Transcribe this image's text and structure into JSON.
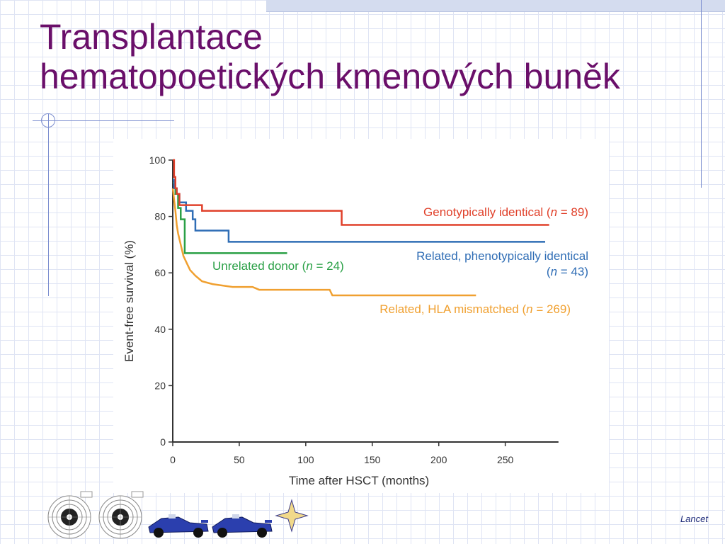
{
  "slide": {
    "title_line1": "Transplantace",
    "title_line2": "hematopoetických kmenových buněk",
    "credit": "Lancet"
  },
  "colors": {
    "title": "#6a0f6a",
    "genotypical": "#e0402a",
    "phenotypical": "#2f6db5",
    "unrelated": "#2aa046",
    "mismatched": "#f0a030"
  },
  "icons": [
    "target-icon",
    "target-icon",
    "race-car-icon",
    "race-car-icon",
    "star-icon"
  ],
  "chart_data": {
    "type": "line",
    "xlabel": "Time after HSCT (months)",
    "ylabel": "Event-free survival (%)",
    "xlim": [
      0,
      290
    ],
    "ylim": [
      0,
      100
    ],
    "xticks": [
      0,
      50,
      100,
      150,
      200,
      250
    ],
    "yticks": [
      0,
      20,
      40,
      60,
      80,
      100
    ],
    "grid": false,
    "series": [
      {
        "name": "Genotypically identical",
        "n_label": "n = 89",
        "color": "#e0402a",
        "step": true,
        "x": [
          0,
          1,
          2,
          3,
          5,
          8,
          22,
          127,
          283
        ],
        "y": [
          100,
          94,
          90,
          88,
          84,
          84,
          82,
          77,
          77
        ]
      },
      {
        "name": "Related, phenotypically identical",
        "n_label": "n = 43",
        "color": "#2f6db5",
        "step": true,
        "x": [
          0,
          1,
          3,
          5,
          10,
          15,
          17,
          42,
          280
        ],
        "y": [
          93,
          90,
          88,
          85,
          82,
          79,
          75,
          71,
          71
        ]
      },
      {
        "name": "Unrelated donor",
        "n_label": "n = 24",
        "color": "#2aa046",
        "step": true,
        "x": [
          0,
          2,
          4,
          6,
          9,
          86
        ],
        "y": [
          92,
          88,
          83,
          79,
          67,
          67
        ]
      },
      {
        "name": "Related, HLA mismatched",
        "n_label": "n = 269",
        "color": "#f0a030",
        "step": false,
        "x": [
          0,
          2,
          3,
          4,
          5,
          6,
          8,
          10,
          13,
          17,
          22,
          30,
          45,
          60,
          65,
          90,
          118,
          120,
          140,
          180,
          228
        ],
        "y": [
          90,
          82,
          77,
          74,
          72,
          70,
          66,
          64,
          61,
          59,
          57,
          56,
          55,
          55,
          54,
          54,
          54,
          52,
          52,
          52,
          52
        ]
      }
    ]
  }
}
